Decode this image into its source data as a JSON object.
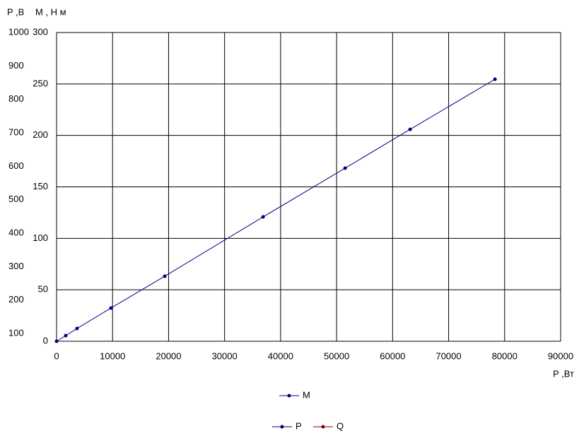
{
  "chart_data": {
    "type": "line",
    "ylabel": "М , Н м",
    "y2label": "P ,В",
    "xlabel": "P ,Вт",
    "x": [
      0,
      1640,
      3660,
      9720,
      19320,
      36870,
      51520,
      63130,
      78280
    ],
    "series": [
      {
        "name": "М",
        "color": "#000080",
        "values": [
          0,
          5.5,
          12.4,
          32.3,
          63.2,
          120.8,
          168.2,
          205.9,
          254.6
        ]
      },
      {
        "name": "P",
        "color": "#000080",
        "axis": "y2",
        "values": [
          null,
          null,
          null,
          null,
          null,
          null,
          null,
          null,
          null
        ]
      },
      {
        "name": "Q",
        "color": "#800000",
        "axis": "y2",
        "values": [
          null,
          null,
          null,
          null,
          null,
          null,
          null,
          null,
          null
        ]
      }
    ],
    "xlim": [
      0,
      90000
    ],
    "xticks": [
      0,
      10000,
      20000,
      30000,
      40000,
      50000,
      60000,
      70000,
      80000,
      90000
    ],
    "ylim": [
      0,
      300
    ],
    "yticks": [
      0,
      50,
      100,
      150,
      200,
      250,
      300
    ],
    "y2lim": [
      77,
      1000
    ],
    "y2ticks": [
      100,
      200,
      300,
      400,
      500,
      600,
      700,
      800,
      900,
      1000
    ],
    "grid": true
  }
}
